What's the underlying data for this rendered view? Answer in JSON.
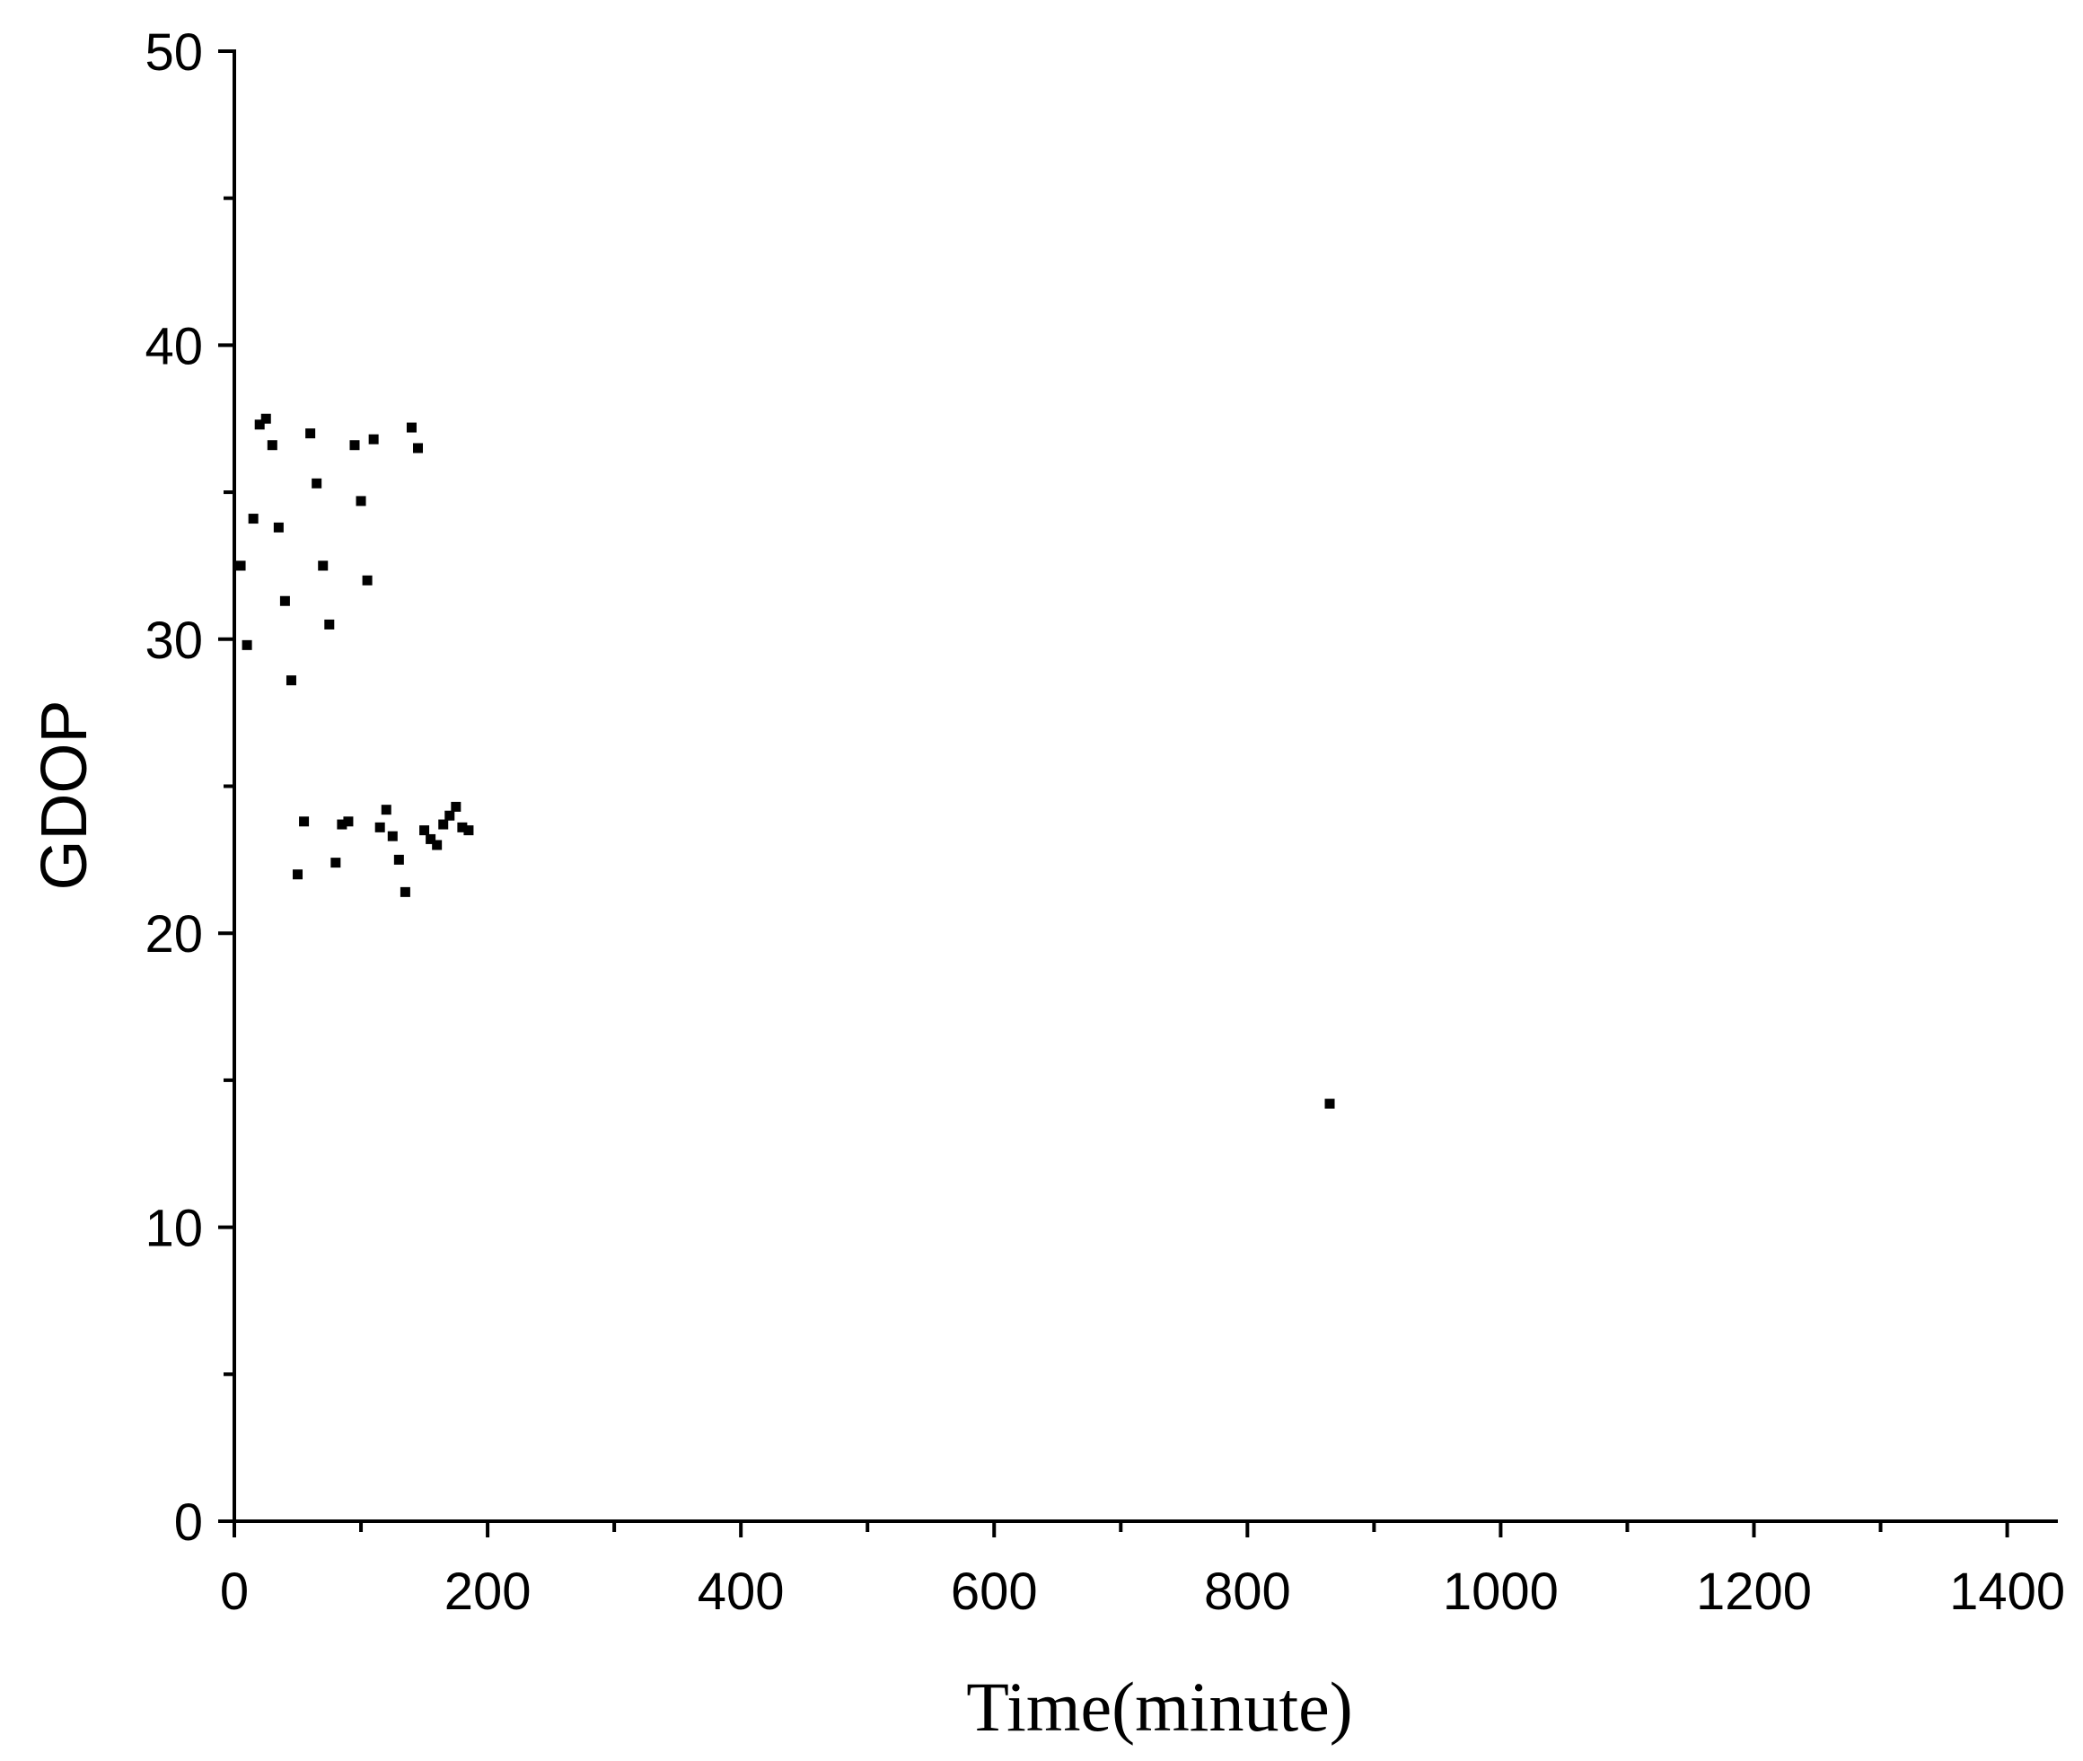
{
  "chart_data": {
    "type": "scatter",
    "title": "",
    "xlabel": "Time(minute)",
    "ylabel": "GDOP",
    "xlim": [
      0,
      1440
    ],
    "ylim": [
      0,
      50
    ],
    "x_ticks": [
      0,
      200,
      400,
      600,
      800,
      1000,
      1200,
      1400
    ],
    "y_ticks": [
      0,
      10,
      20,
      30,
      40,
      50
    ],
    "x_minor_step": 100,
    "y_minor_step": 5,
    "grid": false,
    "legend": "none",
    "colors": {
      "marker": "#000000",
      "axis": "#000000"
    },
    "series": [
      {
        "points": [
          {
            "x": 5,
            "y": 32.5
          },
          {
            "x": 10,
            "y": 29.8
          },
          {
            "x": 15,
            "y": 34.1
          },
          {
            "x": 20,
            "y": 37.3
          },
          {
            "x": 25,
            "y": 37.5
          },
          {
            "x": 30,
            "y": 36.6
          },
          {
            "x": 35,
            "y": 33.8
          },
          {
            "x": 40,
            "y": 31.3
          },
          {
            "x": 45,
            "y": 28.6
          },
          {
            "x": 50,
            "y": 22.0
          },
          {
            "x": 55,
            "y": 23.8
          },
          {
            "x": 60,
            "y": 37.0
          },
          {
            "x": 65,
            "y": 35.3
          },
          {
            "x": 70,
            "y": 32.5
          },
          {
            "x": 75,
            "y": 30.5
          },
          {
            "x": 80,
            "y": 22.4
          },
          {
            "x": 85,
            "y": 23.7
          },
          {
            "x": 90,
            "y": 23.8
          },
          {
            "x": 95,
            "y": 36.6
          },
          {
            "x": 100,
            "y": 34.7
          },
          {
            "x": 105,
            "y": 32.0
          },
          {
            "x": 110,
            "y": 36.8
          },
          {
            "x": 115,
            "y": 23.6
          },
          {
            "x": 120,
            "y": 24.2
          },
          {
            "x": 125,
            "y": 23.3
          },
          {
            "x": 130,
            "y": 22.5
          },
          {
            "x": 135,
            "y": 21.4
          },
          {
            "x": 140,
            "y": 37.2
          },
          {
            "x": 145,
            "y": 36.5
          },
          {
            "x": 150,
            "y": 23.5
          },
          {
            "x": 155,
            "y": 23.2
          },
          {
            "x": 160,
            "y": 23.0
          },
          {
            "x": 165,
            "y": 23.7
          },
          {
            "x": 170,
            "y": 24.0
          },
          {
            "x": 175,
            "y": 24.3
          },
          {
            "x": 180,
            "y": 23.6
          },
          {
            "x": 185,
            "y": 23.5
          },
          {
            "x": 865,
            "y": 14.2
          }
        ]
      }
    ]
  }
}
